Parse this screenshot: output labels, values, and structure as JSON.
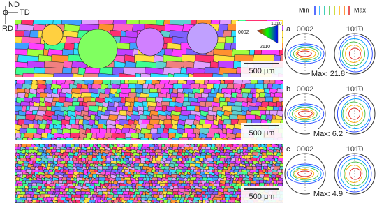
{
  "axes": {
    "nd": "ND",
    "td": "TD",
    "rd": "RD"
  },
  "ipf_key": {
    "top": "101̄0",
    "left": "0002",
    "bottom": "2̄110"
  },
  "maps": [
    {
      "scale_bar": "500 μm"
    },
    {
      "scale_bar": "500 μm"
    },
    {
      "scale_bar": "500 μm"
    }
  ],
  "legend": {
    "min": "Min",
    "max": "Max"
  },
  "panels": [
    {
      "label": "a",
      "pole_figures": [
        "0002",
        "101̄0"
      ],
      "max": "Max: 21.8"
    },
    {
      "label": "b",
      "pole_figures": [
        "0002",
        "101̄0"
      ],
      "max": "Max: 6.2"
    },
    {
      "label": "c",
      "pole_figures": [
        "0002",
        "101̄0"
      ],
      "max": "Max: 4.9"
    }
  ]
}
